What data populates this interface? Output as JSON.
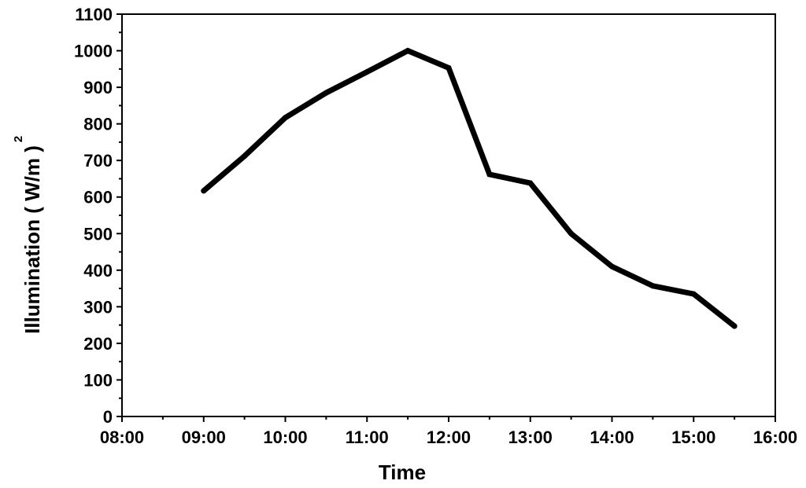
{
  "chart_data": {
    "type": "line",
    "title": "",
    "xlabel": "Time",
    "ylabel": "Illumination ( W/m )",
    "ylabel_superscript": "2",
    "xlim": [
      "08:00",
      "16:00"
    ],
    "ylim": [
      0,
      1100
    ],
    "x_ticks": [
      "08:00",
      "09:00",
      "10:00",
      "11:00",
      "12:00",
      "13:00",
      "14:00",
      "15:00",
      "16:00"
    ],
    "y_ticks": [
      "0",
      "100",
      "200",
      "300",
      "400",
      "500",
      "600",
      "700",
      "800",
      "900",
      "1000",
      "1100"
    ],
    "grid": false,
    "legend": "none",
    "line_color": "#000000",
    "series": [
      {
        "x": [
          "09:00",
          "09:30",
          "10:00",
          "10:30",
          "11:00",
          "11:30",
          "12:00",
          "12:30",
          "13:00",
          "13:30",
          "14:00",
          "14:30",
          "15:00",
          "15:30"
        ],
        "values": [
          617,
          712,
          817,
          885,
          942,
          1000,
          953,
          662,
          638,
          500,
          410,
          357,
          335,
          247
        ]
      }
    ]
  }
}
